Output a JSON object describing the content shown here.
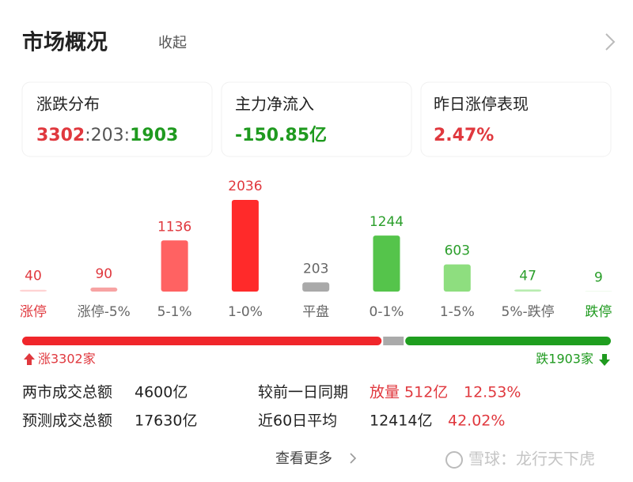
{
  "header": {
    "title": "市场概况",
    "toggle": "收起"
  },
  "cards": [
    {
      "label": "涨跌分布",
      "value_parts": [
        "3302",
        ":",
        "203",
        ":",
        "1903"
      ]
    },
    {
      "label": "主力净流入",
      "value": "-150.85亿"
    },
    {
      "label": "昨日涨停表现",
      "value": "2.47%"
    }
  ],
  "chart_data": {
    "type": "bar",
    "categories": [
      "涨停",
      "涨停-5%",
      "5-1%",
      "1-0%",
      "平盘",
      "0-1%",
      "1-5%",
      "5%-跌停",
      "跌停"
    ],
    "values": [
      40,
      90,
      1136,
      2036,
      203,
      1244,
      603,
      47,
      9
    ],
    "colors": [
      "#ffd3d3",
      "#f7a3a3",
      "#ff6262",
      "#ff2a2a",
      "#a9a9a9",
      "#55c44b",
      "#8ede7f",
      "#b8ecb0",
      "#dcf6d8"
    ],
    "value_label_colors": [
      "#e0383e",
      "#e0383e",
      "#e0383e",
      "#e0383e",
      "#666666",
      "#2a9e2a",
      "#2a9e2a",
      "#2a9e2a",
      "#2a9e2a"
    ],
    "category_label_colors": [
      "#e0383e",
      "#666666",
      "#666666",
      "#666666",
      "#666666",
      "#666666",
      "#666666",
      "#666666",
      "#1f9a1f"
    ]
  },
  "breadth": {
    "up": 3302,
    "flat": 203,
    "down": 1903,
    "up_color": "#f0262b",
    "flat_color": "#aaaaaa",
    "down_color": "#1f9e1f",
    "up_label": "涨3302家",
    "down_label": "跌1903家"
  },
  "stats": {
    "rows": [
      [
        "两市成交总额",
        "4600亿",
        "较前一日同期",
        "放量 512亿",
        "12.53%"
      ],
      [
        "预测成交总额",
        "17630亿",
        "近60日平均",
        "12414亿",
        "42.02%"
      ]
    ]
  },
  "footer": {
    "more": "查看更多",
    "watermark": "雪球：龙行天下虎"
  }
}
